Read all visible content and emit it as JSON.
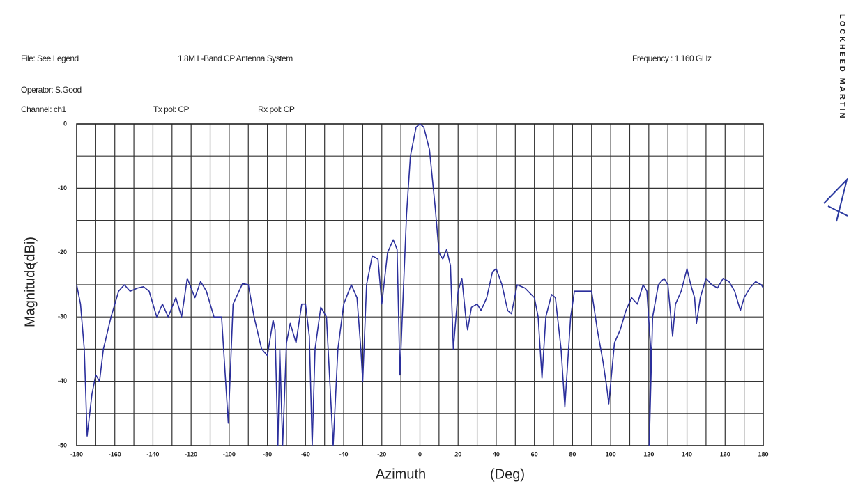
{
  "header": {
    "file": "File: See Legend",
    "system": "1.8M L-Band CP Antenna System",
    "frequency": "Frequency  :  1.160 GHz",
    "operator": "Operator: S.Good",
    "channel": "Channel: ch1",
    "tx_pol": "Tx pol: CP",
    "rx_pol": "Rx pol: CP",
    "logo": "LOCKHEED MARTIN"
  },
  "chart_data": {
    "type": "line",
    "x_label": "Azimuth",
    "x_unit": "(Deg)",
    "y_label": "Magnitude",
    "y_unit": "(dBi)",
    "xlim": [
      -180,
      180
    ],
    "ylim": [
      -50,
      0
    ],
    "xticks": [
      -180,
      -160,
      -140,
      -120,
      -100,
      -80,
      -60,
      -40,
      -20,
      0,
      20,
      40,
      60,
      80,
      100,
      120,
      140,
      160,
      180
    ],
    "xminorticks": [
      -170,
      -150,
      -130,
      -110,
      -90,
      -70,
      -50,
      -30,
      -10,
      10,
      30,
      50,
      70,
      90,
      110,
      130,
      150,
      170
    ],
    "yticks": [
      0,
      -10,
      -20,
      -30,
      -40,
      -50
    ],
    "yminorticks": [
      -5,
      -15,
      -25,
      -35,
      -45
    ],
    "grid": true,
    "series": [
      {
        "color": "#2b2f9c",
        "x": [
          -180,
          -178,
          -176,
          -174.5,
          -172,
          -170,
          -168,
          -166,
          -162,
          -158,
          -155,
          -152,
          -148,
          -145,
          -142,
          -138,
          -135,
          -132,
          -128,
          -125,
          -122,
          -118,
          -115,
          -112,
          -108,
          -104,
          -100.5,
          -98,
          -93,
          -90,
          -87,
          -83,
          -80,
          -77,
          -76,
          -74.5,
          -73.5,
          -72,
          -70,
          -68,
          -65,
          -62,
          -60,
          -58,
          -56.5,
          -55,
          -52,
          -49,
          -45.5,
          -43,
          -40,
          -36,
          -33,
          -31,
          -30,
          -28,
          -25,
          -22,
          -20,
          -17,
          -14,
          -12,
          -10.5,
          -9,
          -7,
          -5,
          -2,
          0,
          2,
          5,
          8,
          10,
          12,
          14,
          16,
          17.5,
          20,
          22,
          24,
          25,
          27,
          30,
          32,
          35,
          38,
          40,
          43,
          46,
          48,
          51,
          55,
          60,
          62,
          64,
          66,
          69,
          71,
          74,
          76,
          79,
          81,
          84,
          90,
          93,
          96,
          98,
          99,
          102,
          105,
          108,
          111,
          114,
          117,
          119,
          121,
          120.2,
          122,
          125,
          128,
          130,
          132.5,
          134,
          137,
          140,
          142,
          144,
          145,
          147,
          150,
          153,
          156,
          159,
          162,
          165,
          168,
          170,
          173,
          176,
          179,
          180
        ],
        "values": [
          -25,
          -28,
          -35,
          -48.5,
          -42,
          -39,
          -40,
          -35,
          -30,
          -26,
          -25,
          -26,
          -25.5,
          -25.3,
          -26,
          -30,
          -28,
          -30,
          -27,
          -30,
          -24,
          -27,
          -24.5,
          -26,
          -30,
          -30,
          -46.5,
          -28,
          -24.8,
          -25,
          -30,
          -35,
          -36,
          -30.5,
          -32,
          -50,
          -35,
          -50,
          -34,
          -31,
          -34,
          -28,
          -28,
          -33,
          -50,
          -35,
          -28.5,
          -30,
          -50,
          -35,
          -28,
          -25,
          -27,
          -35,
          -40,
          -25,
          -20.5,
          -21,
          -28,
          -20,
          -18,
          -19.5,
          -39,
          -28,
          -14,
          -5,
          -0.5,
          0,
          -0.5,
          -4,
          -13,
          -20,
          -21,
          -19.5,
          -22,
          -35,
          -26,
          -24,
          -30,
          -32,
          -28.5,
          -28,
          -29,
          -27,
          -23,
          -22.5,
          -25,
          -29,
          -29.5,
          -25,
          -25.5,
          -27,
          -30,
          -39.5,
          -30,
          -26.5,
          -27,
          -35,
          -44,
          -30,
          -26,
          -26,
          -26,
          -32,
          -37,
          -41,
          -43.5,
          -34,
          -32,
          -29,
          -27,
          -28,
          -25,
          -26,
          -35,
          -50,
          -30,
          -25,
          -24,
          -25,
          -33,
          -28,
          -26,
          -22.5,
          -25,
          -27,
          -31,
          -27,
          -24,
          -25,
          -25.5,
          -24,
          -24.5,
          -26,
          -29,
          -27,
          -25.5,
          -24.5,
          -25,
          -25.5
        ]
      }
    ]
  }
}
